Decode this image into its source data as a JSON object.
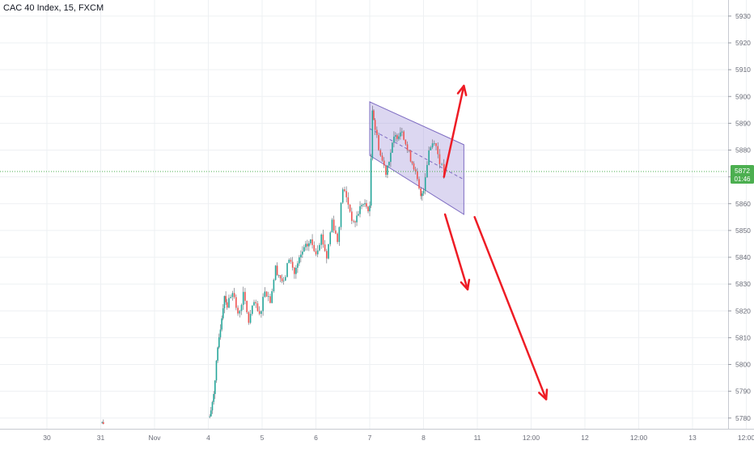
{
  "chart_data": {
    "type": "candlestick",
    "title": "CAC 40 Index, 15, FXCM",
    "y_ticks": [
      5780,
      5790,
      5800,
      5810,
      5820,
      5830,
      5840,
      5850,
      5860,
      5870,
      5880,
      5890,
      5900,
      5910,
      5920,
      5930
    ],
    "x_ticks": [
      {
        "label": "30",
        "slot": 0
      },
      {
        "label": "31",
        "slot": 1
      },
      {
        "label": "Nov",
        "slot": 2
      },
      {
        "label": "4",
        "slot": 3
      },
      {
        "label": "5",
        "slot": 4
      },
      {
        "label": "6",
        "slot": 5
      },
      {
        "label": "7",
        "slot": 6
      },
      {
        "label": "8",
        "slot": 7
      },
      {
        "label": "11",
        "slot": 8
      },
      {
        "label": "12:00",
        "slot": 9
      },
      {
        "label": "12",
        "slot": 10
      },
      {
        "label": "12:00",
        "slot": 11
      },
      {
        "label": "13",
        "slot": 12
      },
      {
        "label": "12:00",
        "slot": 13
      }
    ],
    "ylim": [
      5776,
      5936
    ],
    "last_price": "5872",
    "countdown": "01:46",
    "last_price_value": 5872,
    "price_path": [
      [
        1.0,
        5779
      ],
      [
        1.05,
        5778
      ],
      [
        3.0,
        5777
      ],
      [
        3.05,
        5782
      ],
      [
        3.1,
        5790
      ],
      [
        3.15,
        5800
      ],
      [
        3.2,
        5810
      ],
      [
        3.25,
        5818
      ],
      [
        3.3,
        5826
      ],
      [
        3.35,
        5822
      ],
      [
        3.45,
        5828
      ],
      [
        3.55,
        5818
      ],
      [
        3.65,
        5826
      ],
      [
        3.75,
        5816
      ],
      [
        3.85,
        5823
      ],
      [
        3.95,
        5818
      ],
      [
        4.05,
        5828
      ],
      [
        4.15,
        5824
      ],
      [
        4.25,
        5836
      ],
      [
        4.4,
        5830
      ],
      [
        4.5,
        5840
      ],
      [
        4.6,
        5834
      ],
      [
        4.75,
        5842
      ],
      [
        4.9,
        5846
      ],
      [
        5.0,
        5842
      ],
      [
        5.1,
        5848
      ],
      [
        5.2,
        5840
      ],
      [
        5.3,
        5854
      ],
      [
        5.4,
        5846
      ],
      [
        5.5,
        5866
      ],
      [
        5.6,
        5860
      ],
      [
        5.7,
        5852
      ],
      [
        5.85,
        5860
      ],
      [
        6.0,
        5858
      ],
      [
        6.05,
        5896
      ],
      [
        6.1,
        5888
      ],
      [
        6.2,
        5878
      ],
      [
        6.3,
        5872
      ],
      [
        6.45,
        5884
      ],
      [
        6.6,
        5888
      ],
      [
        6.7,
        5880
      ],
      [
        6.82,
        5874
      ],
      [
        6.95,
        5862
      ],
      [
        7.0,
        5866
      ],
      [
        7.1,
        5880
      ],
      [
        7.2,
        5884
      ],
      [
        7.3,
        5876
      ],
      [
        7.38,
        5871
      ]
    ],
    "channel": {
      "start": [
        6.0,
        5878,
        5898
      ],
      "end": [
        7.75,
        5856,
        5882
      ]
    },
    "arrows": [
      {
        "from": [
          7.38,
          5870
        ],
        "to": [
          7.75,
          5904
        ]
      },
      {
        "from": [
          7.4,
          5856
        ],
        "to": [
          7.82,
          5828
        ]
      },
      {
        "from": [
          7.95,
          5855
        ],
        "to": [
          9.28,
          5787
        ]
      }
    ],
    "colors": {
      "up": "#26a69a",
      "down": "#ef5350",
      "channel_fill": "#9c8cd6",
      "channel_line": "#7e6cc2",
      "arrow": "#ee1c25",
      "price_label": "#4caf50",
      "grid": "#eef0f3"
    }
  }
}
